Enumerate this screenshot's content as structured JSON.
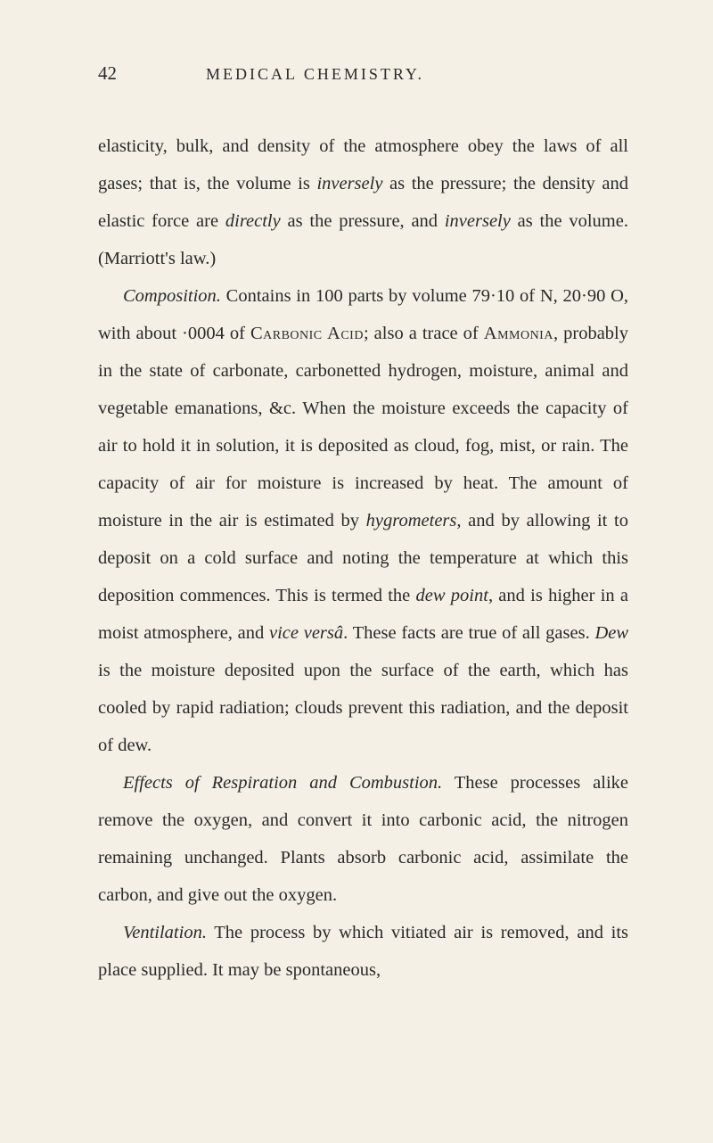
{
  "page": {
    "number": "42",
    "running_title": "MEDICAL CHEMISTRY.",
    "background_color": "#f4f0e6",
    "text_color": "#2a2a2a",
    "font_family": "Georgia, Times New Roman, serif",
    "body_fontsize": 20.5,
    "line_height": 2.05
  },
  "paragraphs": {
    "p1_a": "elasticity, bulk, and density of the atmosphere obey the laws of all gases; that is, the volume is ",
    "p1_i1": "inversely",
    "p1_b": " as the pressure; the density and elastic force are ",
    "p1_i2": "directly",
    "p1_c": " as the pressure, and ",
    "p1_i3": "inversely",
    "p1_d": " as the volume. (Marriott's law.)",
    "p2_i1": "Composition.",
    "p2_a": " Contains in 100 parts by volume 79·10 of N, 20·90 O, with about ·0004 of ",
    "p2_sc1": "Carbonic Acid",
    "p2_b": "; also a trace of ",
    "p2_sc2": "Ammonia",
    "p2_c": ", probably in the state of carbonate, carbonetted hydrogen, moisture, animal and vegetable emanations, &c. When the moisture exceeds the capacity of air to hold it in solution, it is deposited as cloud, fog, mist, or rain. The capacity of air for moisture is increased by heat. The amount of moisture in the air is estimated by ",
    "p2_i2": "hygrometers",
    "p2_d": ", and by allowing it to deposit on a cold surface and noting the temperature at which this deposition commences. This is termed the ",
    "p2_i3": "dew point",
    "p2_e": ", and is higher in a moist atmosphere, and ",
    "p2_i4": "vice versâ",
    "p2_f": ". These facts are true of all gases. ",
    "p2_i5": "Dew",
    "p2_g": " is the moisture deposited upon the surface of the earth, which has cooled by rapid radiation; clouds prevent this radiation, and the deposit of dew.",
    "p3_i1": "Effects of Respiration and Combustion.",
    "p3_a": " These processes alike remove the oxygen, and convert it into carbonic acid, the nitrogen remaining unchanged. Plants absorb carbonic acid, assimilate the carbon, and give out the oxygen.",
    "p4_i1": "Ventilation.",
    "p4_a": " The process by which vitiated air is removed, and its place supplied. It may be spontaneous,"
  }
}
